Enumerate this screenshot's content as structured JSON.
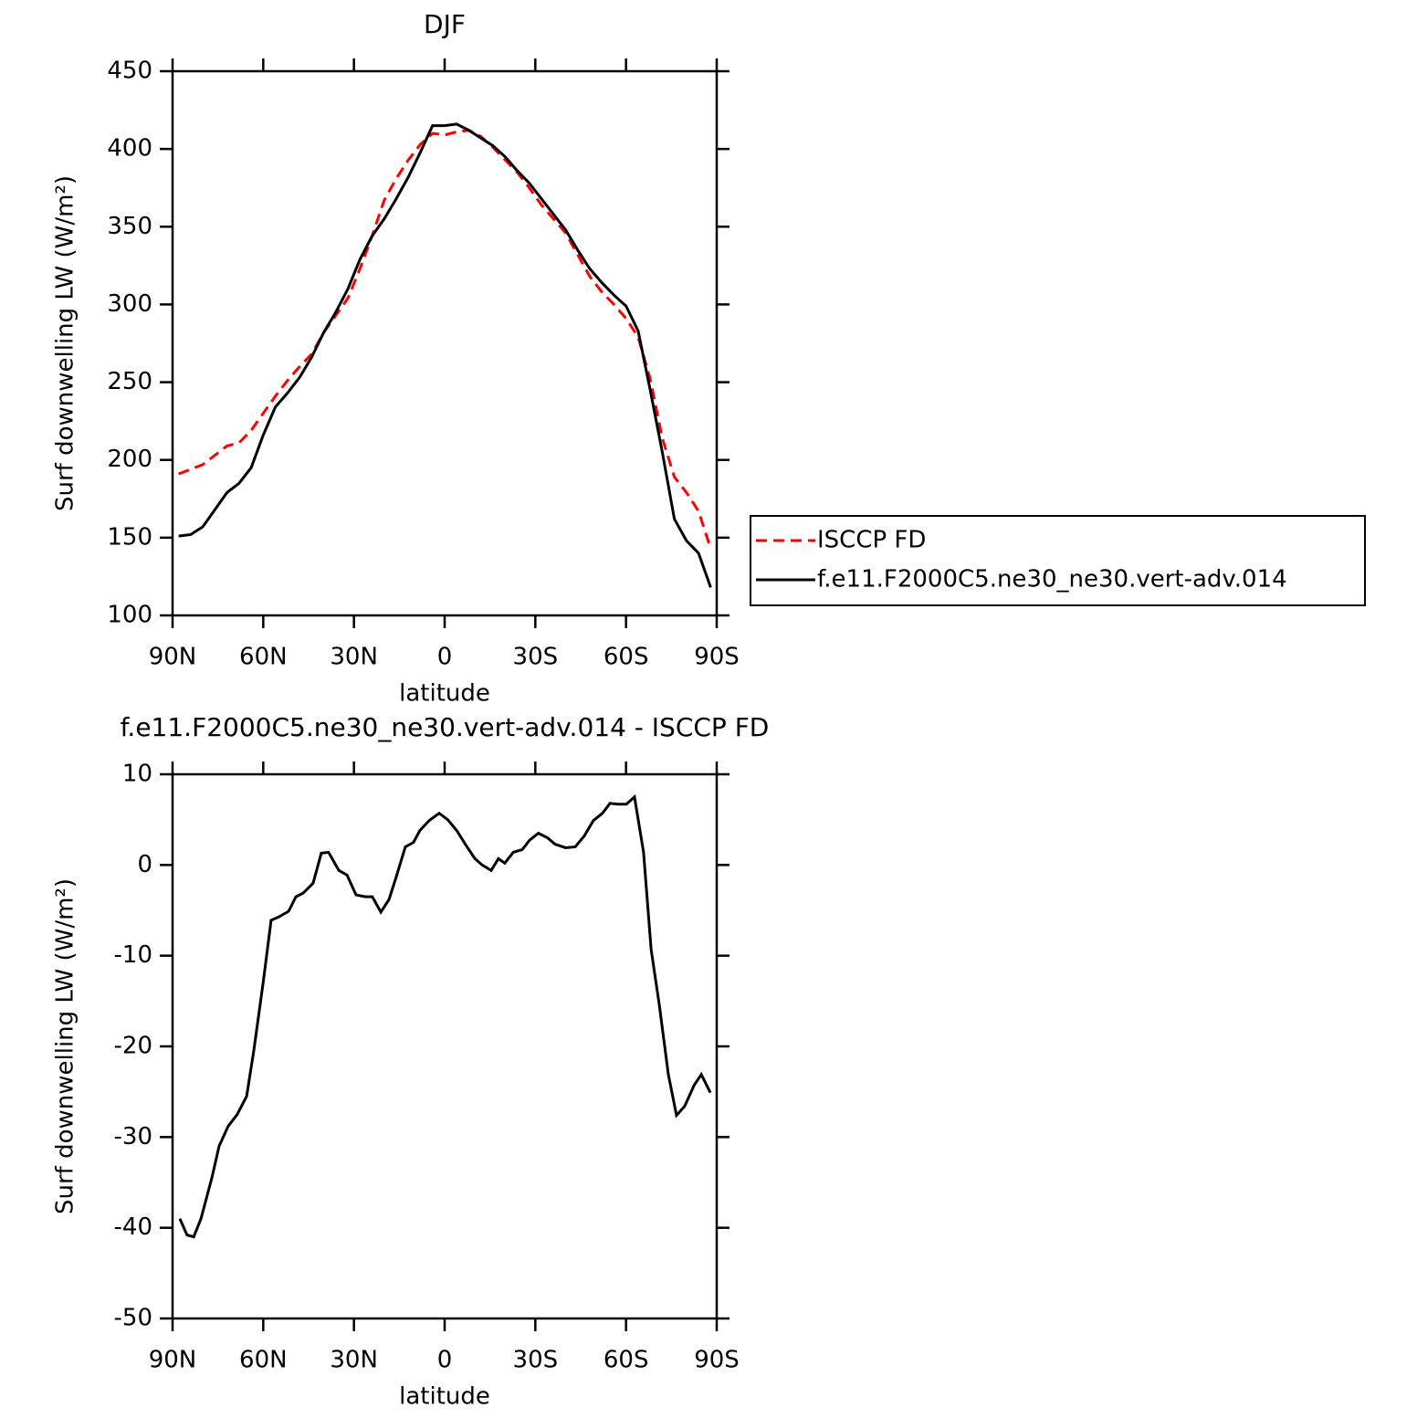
{
  "chart_data": [
    {
      "type": "line",
      "title": "DJF",
      "xlabel": "latitude",
      "ylabel": "Surf downwelling LW (W/m²)",
      "x": [
        88,
        84,
        80,
        76,
        72,
        68,
        64,
        60,
        56,
        52,
        48,
        44,
        40,
        36,
        32,
        28,
        24,
        20,
        16,
        12,
        8,
        4,
        0,
        -4,
        -8,
        -12,
        -16,
        -20,
        -24,
        -28,
        -32,
        -36,
        -40,
        -44,
        -48,
        -52,
        -56,
        -60,
        -64,
        -68,
        -72,
        -76,
        -80,
        -84,
        -88
      ],
      "series": [
        {
          "name": "ISCCP FD",
          "color": "#ff0000",
          "linestyle": "dashed",
          "values": [
            191,
            194,
            197,
            203,
            209,
            211,
            219,
            230,
            241,
            251,
            260,
            268,
            282,
            293,
            304,
            323,
            344,
            367,
            381,
            393,
            403,
            410,
            409,
            411,
            412,
            408,
            401,
            393,
            385,
            375,
            364,
            355,
            346,
            332,
            318,
            308,
            300,
            291,
            279,
            252,
            214,
            189,
            179,
            167,
            143
          ]
        },
        {
          "name": "f.e11.F2000C5.ne30_ne30.vert-adv.014",
          "color": "#000000",
          "linestyle": "solid",
          "values": [
            151,
            152,
            157,
            168,
            179,
            185,
            195,
            216,
            234,
            243,
            253,
            266,
            282,
            295,
            310,
            329,
            344,
            355,
            368,
            382,
            398,
            415,
            415,
            416,
            412,
            407,
            402,
            395,
            386,
            378,
            368,
            358,
            348,
            335,
            323,
            314,
            306,
            299,
            283,
            245,
            205,
            162,
            148,
            140,
            118
          ]
        }
      ],
      "xlim": [
        90,
        -90
      ],
      "xticks": [
        {
          "value": 90,
          "label": "90N"
        },
        {
          "value": 60,
          "label": "60N"
        },
        {
          "value": 30,
          "label": "30N"
        },
        0,
        {
          "value": -30,
          "label": "30S"
        },
        {
          "value": -60,
          "label": "60S"
        },
        {
          "value": -90,
          "label": "90S"
        }
      ],
      "ylim": [
        100,
        450
      ],
      "yticks": [
        100,
        150,
        200,
        250,
        300,
        350,
        400,
        450
      ],
      "grid": false,
      "legend": "outside-right"
    },
    {
      "type": "line",
      "title": "f.e11.F2000C5.ne30_ne30.vert-adv.014 - ISCCP FD",
      "xlabel": "latitude",
      "ylabel": "Surf downwelling LW (W/m²)",
      "x": [
        87.6,
        85.2,
        83,
        80.6,
        77,
        74.6,
        71.6,
        68.6,
        65.5,
        63.1,
        60,
        57.4,
        54.7,
        51.6,
        49.2,
        46.8,
        43.5,
        40.8,
        38.4,
        35,
        32.3,
        29.3,
        26.3,
        23.9,
        21.1,
        18.4,
        16,
        13,
        10.3,
        8.2,
        5.1,
        1.8,
        -1,
        -4,
        -7,
        -10,
        -12.4,
        -15.4,
        -17.8,
        -19.9,
        -22.7,
        -25.7,
        -28,
        -31,
        -34,
        -36.5,
        -40,
        -43.2,
        -46.2,
        -49.2,
        -52.2,
        -54.7,
        -57.4,
        -60.1,
        -62.8,
        -65.8,
        -68.3,
        -71,
        -74,
        -76.7,
        -79.4,
        -82.5,
        -84.9,
        -87.9
      ],
      "series": [
        {
          "color": "#000000",
          "linestyle": "solid",
          "values": [
            -39,
            -40.8,
            -41,
            -39,
            -34.5,
            -31,
            -28.8,
            -27.5,
            -25.5,
            -20.4,
            -12.9,
            -6.1,
            -5.7,
            -5.1,
            -3.5,
            -3.1,
            -2,
            1.3,
            1.4,
            -0.6,
            -1.1,
            -3.3,
            -3.5,
            -3.5,
            -5.2,
            -3.8,
            -1.3,
            2,
            2.5,
            3.8,
            4.9,
            5.7,
            5,
            3.8,
            2.2,
            0.7,
            0,
            -0.6,
            0.7,
            0.2,
            1.4,
            1.7,
            2.7,
            3.5,
            3,
            2.3,
            1.9,
            2,
            3.2,
            4.9,
            5.7,
            6.8,
            6.7,
            6.7,
            7.5,
            1.4,
            -9.3,
            -15.4,
            -23.1,
            -27.6,
            -26.6,
            -24.3,
            -23.1,
            -25.1
          ]
        }
      ],
      "xlim": [
        90,
        -90
      ],
      "xticks": [
        {
          "value": 90,
          "label": "90N"
        },
        {
          "value": 60,
          "label": "60N"
        },
        {
          "value": 30,
          "label": "30N"
        },
        0,
        {
          "value": -30,
          "label": "30S"
        },
        {
          "value": -60,
          "label": "60S"
        },
        {
          "value": -90,
          "label": "90S"
        }
      ],
      "ylim": [
        -50,
        10
      ],
      "yticks": [
        -50,
        -40,
        -30,
        -20,
        -10,
        0,
        10
      ],
      "grid": false
    }
  ]
}
